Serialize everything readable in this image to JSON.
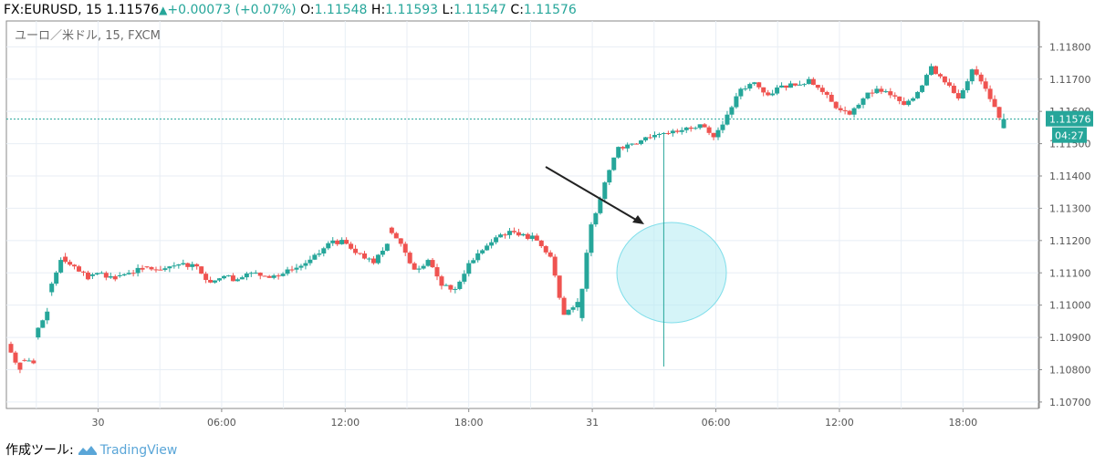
{
  "header": {
    "symbol": "FX:EURUSD, 15",
    "last_price": "1.11576",
    "change": "+0.00073 (+0.07%)",
    "o_label": "O:",
    "o_value": "1.11548",
    "h_label": "H:",
    "h_value": "1.11593",
    "l_label": "L:",
    "l_value": "1.11547",
    "c_label": "C:",
    "c_value": "1.11576"
  },
  "chart_data": {
    "type": "candlestick",
    "title": "ユーロ／米ドル, 15, FXCM",
    "ylim": [
      1.1068,
      1.1188
    ],
    "y_ticks": [
      "1.11800",
      "1.11700",
      "1.11600",
      "1.11500",
      "1.11400",
      "1.11300",
      "1.11200",
      "1.11100",
      "1.11000",
      "1.10900",
      "1.10800",
      "1.10700"
    ],
    "x_ticks": [
      "30",
      "06:00",
      "12:00",
      "18:00",
      "31",
      "06:00",
      "12:00",
      "18:00"
    ],
    "current_price": "1.11576",
    "countdown": "04:27",
    "series": [
      {
        "path": [
          [
            1.1088,
            1.108
          ],
          [
            1.1083,
            1.1082
          ],
          [
            1.109,
            1.1098
          ],
          [
            1.1104,
            1.1114
          ],
          [
            1.1115,
            1.1112
          ],
          [
            1.1112,
            1.1108
          ],
          [
            1.1109,
            1.111
          ],
          [
            1.111,
            1.1108
          ],
          [
            1.1109,
            1.111
          ],
          [
            1.111,
            1.1111
          ],
          [
            1.1112,
            1.1111
          ],
          [
            1.1111,
            1.1112
          ],
          [
            1.1112,
            1.1113
          ],
          [
            1.1113,
            1.1112
          ],
          [
            1.1112,
            1.1107
          ],
          [
            1.1107,
            1.1109
          ],
          [
            1.1109,
            1.1108
          ],
          [
            1.1108,
            1.111
          ],
          [
            1.111,
            1.1109
          ],
          [
            1.1109,
            1.1109
          ],
          [
            1.1109,
            1.1111
          ],
          [
            1.1111,
            1.1113
          ],
          [
            1.1113,
            1.1116
          ],
          [
            1.1116,
            1.112
          ],
          [
            1.112,
            1.1119
          ],
          [
            1.1119,
            1.1116
          ],
          [
            1.1116,
            1.1113
          ],
          [
            1.1113,
            1.1119
          ],
          [
            1.1124,
            1.1119
          ],
          [
            1.1119,
            1.1111
          ],
          [
            1.1111,
            1.1114
          ],
          [
            1.1114,
            1.1106
          ],
          [
            1.1106,
            1.1105
          ],
          [
            1.1105,
            1.1113
          ],
          [
            1.1113,
            1.1117
          ],
          [
            1.1117,
            1.1121
          ],
          [
            1.1121,
            1.1123
          ],
          [
            1.1123,
            1.1122
          ],
          [
            1.1122,
            1.112
          ],
          [
            1.112,
            1.1115
          ],
          [
            1.1115,
            1.1097
          ],
          [
            1.1097,
            1.1101
          ],
          [
            1.1096,
            1.1125
          ],
          [
            1.1125,
            1.1138
          ],
          [
            1.1138,
            1.1149
          ],
          [
            1.1149,
            1.115
          ],
          [
            1.115,
            1.1152
          ],
          [
            1.1152,
            1.1153
          ],
          [
            1.1153,
            1.1154
          ],
          [
            1.1154,
            1.1155
          ],
          [
            1.1155,
            1.1156
          ],
          [
            1.1156,
            1.1152
          ],
          [
            1.1152,
            1.1159
          ],
          [
            1.1159,
            1.1167
          ],
          [
            1.1167,
            1.1169
          ],
          [
            1.1169,
            1.1165
          ],
          [
            1.1165,
            1.1168
          ],
          [
            1.1168,
            1.1168
          ],
          [
            1.1168,
            1.117
          ],
          [
            1.117,
            1.1166
          ],
          [
            1.1166,
            1.1161
          ],
          [
            1.1161,
            1.1159
          ],
          [
            1.1159,
            1.1164
          ],
          [
            1.1164,
            1.1167
          ],
          [
            1.1167,
            1.1165
          ],
          [
            1.1165,
            1.1162
          ],
          [
            1.1162,
            1.1166
          ],
          [
            1.1166,
            1.1174
          ],
          [
            1.1174,
            1.1169
          ],
          [
            1.1169,
            1.1164
          ],
          [
            1.1164,
            1.1173
          ],
          [
            1.1173,
            1.1167
          ],
          [
            1.1167,
            1.1158
          ]
        ],
        "last": [
          1.11548,
          1.11593,
          1.11547,
          1.11576
        ]
      }
    ],
    "annotations": [
      "arrow",
      "circle-highlight"
    ]
  },
  "footer": {
    "made_with": "作成ツール:",
    "brand": "TradingView"
  },
  "colors": {
    "up": "#26a69a",
    "down": "#ef5350",
    "grid": "#e8eef5",
    "axis": "#555555",
    "highlight": "#b2ebf2",
    "price_line": "#26a69a"
  }
}
